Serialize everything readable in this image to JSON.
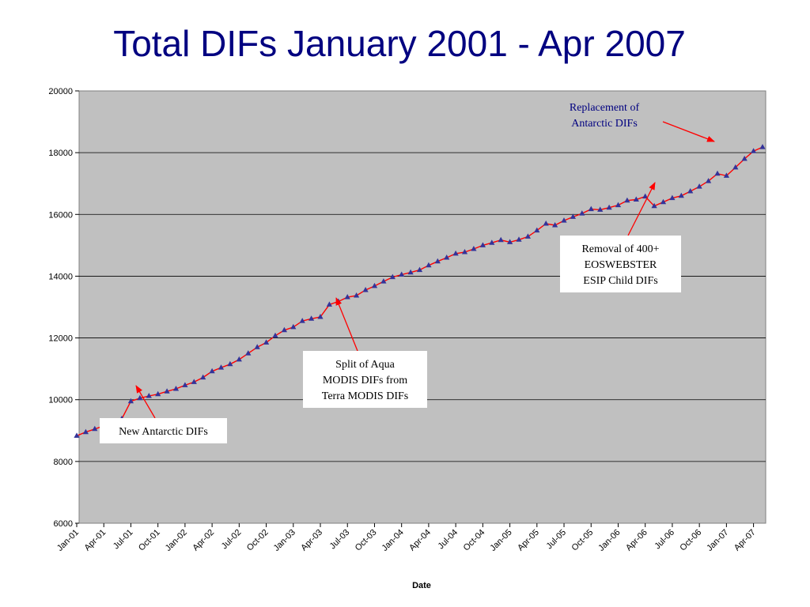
{
  "slide": {
    "title": "Total  DIFs January 2001 - Apr 2007"
  },
  "chart_data": {
    "type": "line",
    "title": "Total  DIFs January 2001 - Apr 2007",
    "xlabel": "Date",
    "ylabel": "",
    "ylim": [
      6000,
      20000
    ],
    "yticks": [
      6000,
      8000,
      10000,
      12000,
      14000,
      16000,
      18000,
      20000
    ],
    "xlim": [
      "2001-01",
      "2007-05"
    ],
    "grid": true,
    "x_tick_labels": [
      "Jan-01",
      "Apr-01",
      "Jul-01",
      "Oct-01",
      "Jan-02",
      "Apr-02",
      "Jul-02",
      "Oct-02",
      "Jan-03",
      "Apr-03",
      "Jul-03",
      "Oct-03",
      "Jan-04",
      "Apr-04",
      "Jul-04",
      "Oct-04",
      "Jan-05",
      "Apr-05",
      "Jul-05",
      "Oct-05",
      "Jan-06",
      "Apr-06",
      "Jul-06",
      "Oct-06",
      "Jan-07",
      "Apr-07"
    ],
    "line_color": "#ff0000",
    "marker_color": "#333399",
    "plot_background": "#c0c0c0",
    "series": [
      {
        "name": "",
        "points": [
          [
            "2001-01",
            8830
          ],
          [
            "2001-02",
            8950
          ],
          [
            "2001-03",
            9050
          ],
          [
            "2001-04",
            9150
          ],
          [
            "2001-05",
            9250
          ],
          [
            "2001-06",
            9380
          ],
          [
            "2001-07",
            9950
          ],
          [
            "2001-08",
            10050
          ],
          [
            "2001-09",
            10120
          ],
          [
            "2001-10",
            10180
          ],
          [
            "2001-11",
            10270
          ],
          [
            "2001-12",
            10350
          ],
          [
            "2002-01",
            10470
          ],
          [
            "2002-02",
            10570
          ],
          [
            "2002-03",
            10720
          ],
          [
            "2002-04",
            10920
          ],
          [
            "2002-05",
            11040
          ],
          [
            "2002-06",
            11150
          ],
          [
            "2002-07",
            11300
          ],
          [
            "2002-08",
            11500
          ],
          [
            "2002-09",
            11700
          ],
          [
            "2002-10",
            11850
          ],
          [
            "2002-11",
            12070
          ],
          [
            "2002-12",
            12250
          ],
          [
            "2003-01",
            12350
          ],
          [
            "2003-02",
            12550
          ],
          [
            "2003-03",
            12620
          ],
          [
            "2003-04",
            12680
          ],
          [
            "2003-05",
            13080
          ],
          [
            "2003-06",
            13180
          ],
          [
            "2003-07",
            13320
          ],
          [
            "2003-08",
            13370
          ],
          [
            "2003-09",
            13550
          ],
          [
            "2003-10",
            13680
          ],
          [
            "2003-11",
            13830
          ],
          [
            "2003-12",
            13970
          ],
          [
            "2004-01",
            14050
          ],
          [
            "2004-02",
            14120
          ],
          [
            "2004-03",
            14200
          ],
          [
            "2004-04",
            14350
          ],
          [
            "2004-05",
            14480
          ],
          [
            "2004-06",
            14600
          ],
          [
            "2004-07",
            14730
          ],
          [
            "2004-08",
            14780
          ],
          [
            "2004-09",
            14880
          ],
          [
            "2004-10",
            15000
          ],
          [
            "2004-11",
            15080
          ],
          [
            "2004-12",
            15170
          ],
          [
            "2005-01",
            15100
          ],
          [
            "2005-02",
            15180
          ],
          [
            "2005-03",
            15280
          ],
          [
            "2005-04",
            15480
          ],
          [
            "2005-05",
            15700
          ],
          [
            "2005-06",
            15650
          ],
          [
            "2005-07",
            15800
          ],
          [
            "2005-08",
            15920
          ],
          [
            "2005-09",
            16030
          ],
          [
            "2005-10",
            16170
          ],
          [
            "2005-11",
            16150
          ],
          [
            "2005-12",
            16220
          ],
          [
            "2006-01",
            16300
          ],
          [
            "2006-02",
            16450
          ],
          [
            "2006-03",
            16480
          ],
          [
            "2006-04",
            16580
          ],
          [
            "2006-05",
            16270
          ],
          [
            "2006-06",
            16400
          ],
          [
            "2006-07",
            16530
          ],
          [
            "2006-08",
            16600
          ],
          [
            "2006-09",
            16750
          ],
          [
            "2006-10",
            16900
          ],
          [
            "2006-11",
            17080
          ],
          [
            "2006-12",
            17320
          ],
          [
            "2007-01",
            17250
          ],
          [
            "2007-02",
            17520
          ],
          [
            "2007-03",
            17800
          ],
          [
            "2007-04",
            18050
          ],
          [
            "2007-05",
            18180
          ]
        ]
      }
    ],
    "annotations": [
      {
        "id": "new-antarctic",
        "lines": [
          "New Antarctic DIFs"
        ],
        "points_to": "2001-07",
        "text_color": "#000000"
      },
      {
        "id": "split-aqua",
        "lines": [
          "Split of Aqua",
          "MODIS DIFs from",
          "Terra MODIS DIFs"
        ],
        "points_to": "2003-06",
        "text_color": "#000000"
      },
      {
        "id": "removal-eoswebster",
        "lines": [
          "Removal of 400+",
          "EOSWEBSTER",
          "ESIP Child DIFs"
        ],
        "points_to": "2006-04",
        "text_color": "#000000"
      },
      {
        "id": "replacement-antarctic",
        "lines": [
          "Replacement of",
          "Antarctic DIFs"
        ],
        "points_to": "2007-01",
        "text_color": "#000080"
      }
    ]
  }
}
